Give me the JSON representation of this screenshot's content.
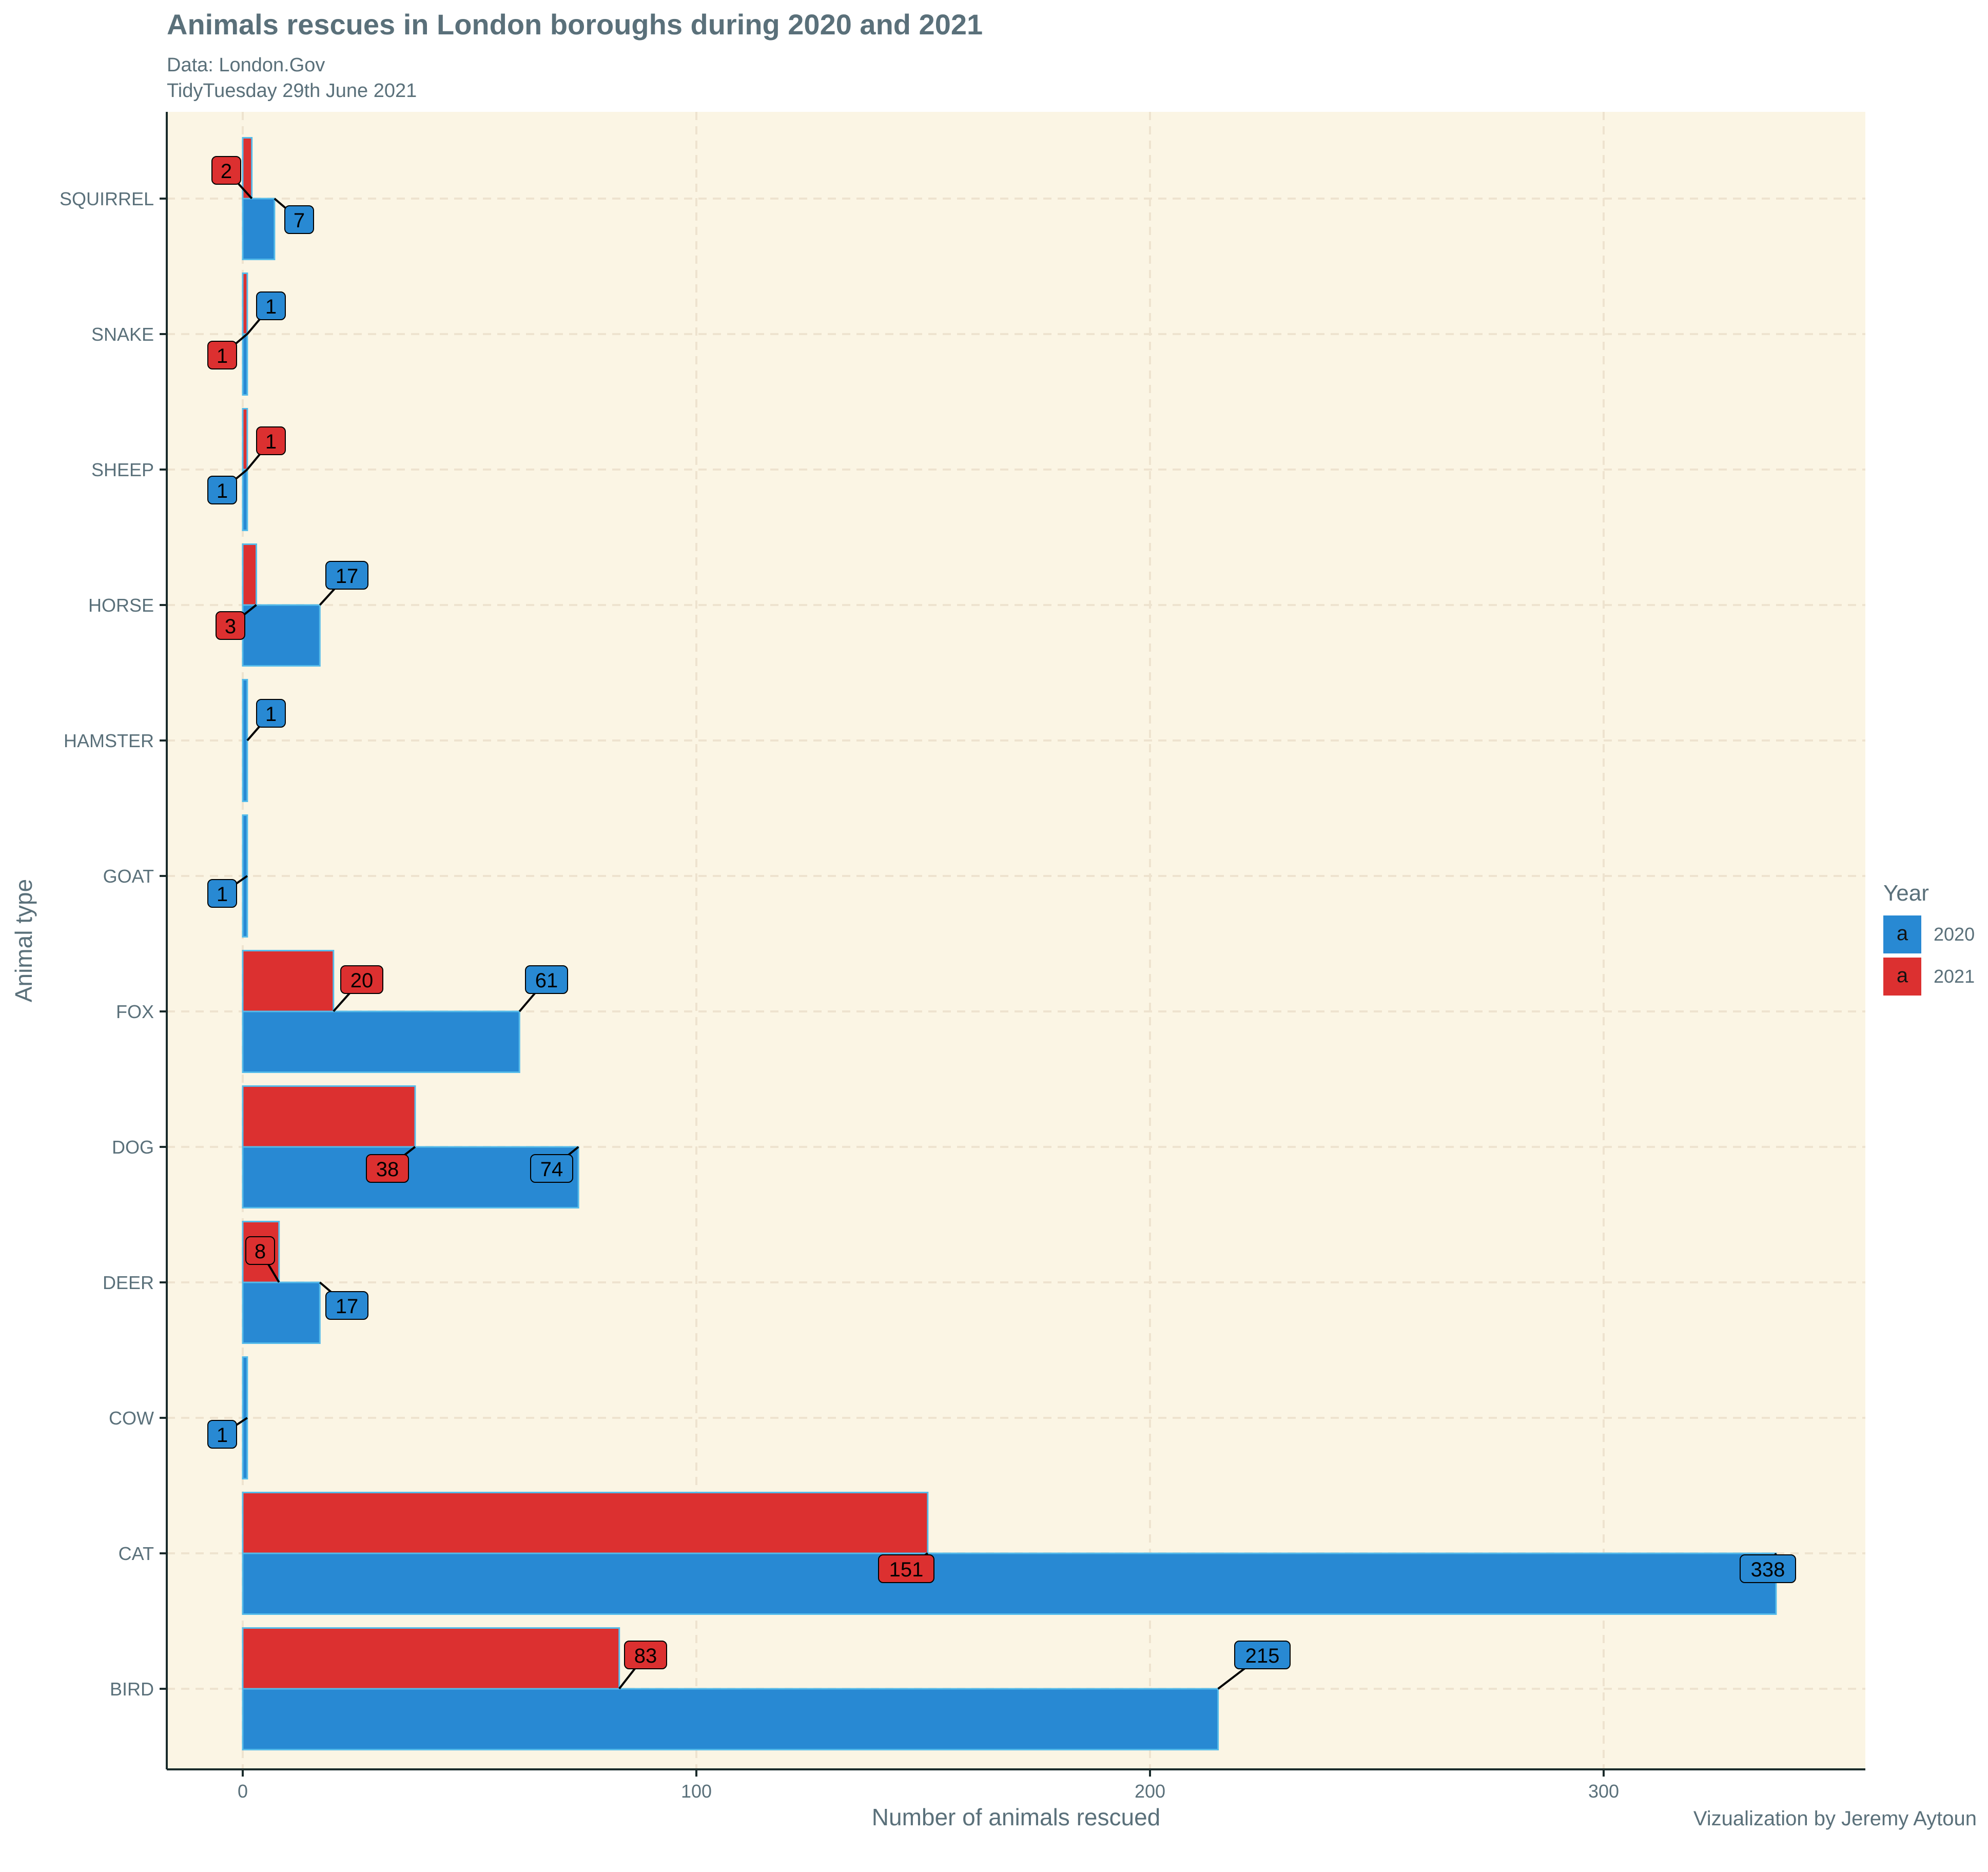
{
  "title": "Animals rescues in London boroughs during 2020 and 2021",
  "subtitle_line1": "Data: London.Gov",
  "subtitle_line2": "TidyTuesday 29th June 2021",
  "caption": "Vizualization by Jeremy Aytoun",
  "legend": {
    "title": "Year",
    "key_glyph": "a",
    "items": [
      {
        "label": "2020",
        "color": "#2889d3"
      },
      {
        "label": "2021",
        "color": "#dc3030"
      }
    ]
  },
  "colors": {
    "panel": "#fbf5e4",
    "grid": "#eee3cf",
    "bar_2020": "#2889d3",
    "bar_2021": "#dc3030",
    "bar_outline": "#55bbea",
    "axis_text": "#5a707a"
  },
  "chart_data": {
    "type": "bar",
    "orientation": "horizontal",
    "title": "Animals rescues in London boroughs during 2020 and 2021",
    "xlabel": "Number of animals rescued",
    "ylabel": "Animal type",
    "categories": [
      "BIRD",
      "CAT",
      "COW",
      "DEER",
      "DOG",
      "FOX",
      "GOAT",
      "HAMSTER",
      "HORSE",
      "SHEEP",
      "SNAKE",
      "SQUIRREL"
    ],
    "series": [
      {
        "name": "2020",
        "values": [
          215,
          338,
          1,
          17,
          74,
          61,
          1,
          1,
          17,
          1,
          1,
          7
        ]
      },
      {
        "name": "2021",
        "values": [
          83,
          151,
          null,
          8,
          38,
          20,
          null,
          null,
          3,
          1,
          1,
          2
        ]
      }
    ],
    "xlim": [
      -16.9,
      355.9
    ],
    "xticks": [
      0,
      100,
      200,
      300
    ],
    "grid": true,
    "legend_position": "right"
  }
}
